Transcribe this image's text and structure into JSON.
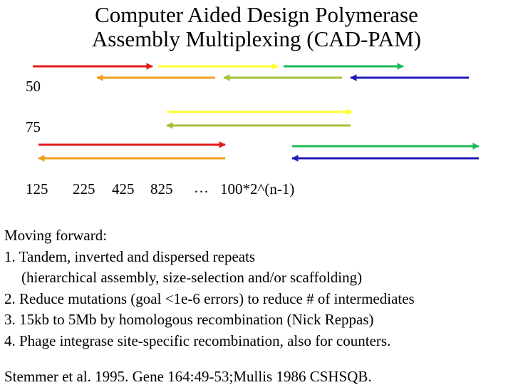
{
  "title": {
    "line1": "Computer Aided Design Polymerase",
    "line2": "Assembly Multiplexing (CAD-PAM)"
  },
  "labels": {
    "n50": "50",
    "n75": "75",
    "n125": "125",
    "n225": "225",
    "n425": "425",
    "n825": "825",
    "ellipsis": "…",
    "formula": "100*2^(n-1)"
  },
  "colors": {
    "red": "#e31b1b",
    "yellow": "#ffff33",
    "green": "#1fb85a",
    "orange": "#f0a020",
    "olive": "#a3c238",
    "blue": "#1c1cb8"
  },
  "notes": {
    "heading": "Moving forward:",
    "item1": "1. Tandem, inverted and dispersed repeats",
    "item1_sub": "(hierarchical assembly, size-selection and/or scaffolding)",
    "item2": "2. Reduce mutations (goal <1e-6 errors) to reduce # of intermediates",
    "item3": "3. 15kb to 5Mb  by homologous recombination (Nick Reppas)",
    "item4": "4. Phage integrase site-specific recombination, also for counters."
  },
  "citation": "Stemmer et al. 1995. Gene 164:49-53;Mullis 1986 CSHSQB."
}
